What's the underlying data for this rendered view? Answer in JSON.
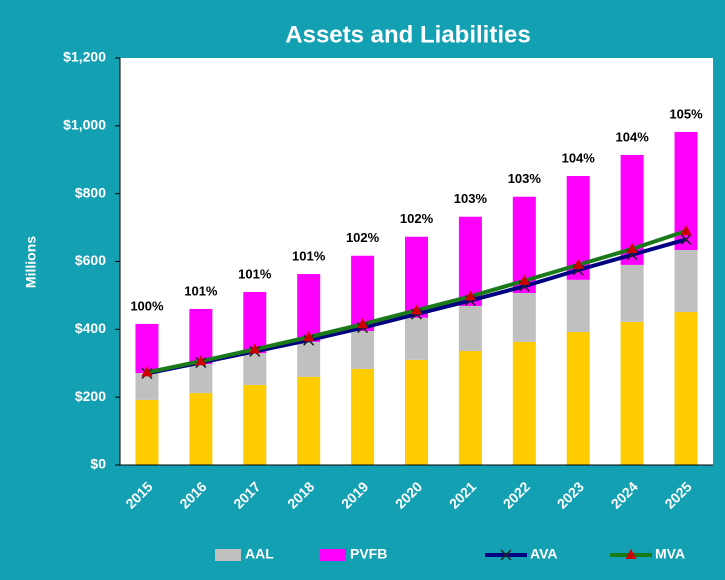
{
  "chart_data": {
    "type": "bar",
    "stacked": true,
    "title": "Assets and Liabilities",
    "y_label": "Millions",
    "categories": [
      "2015",
      "2016",
      "2017",
      "2018",
      "2019",
      "2020",
      "2021",
      "2022",
      "2023",
      "2024",
      "2025"
    ],
    "series": [
      {
        "color": "#ffcc00",
        "values": [
          192,
          212,
          236,
          260,
          283,
          310,
          336,
          363,
          392,
          422,
          451
        ]
      },
      {
        "name": "AAL",
        "color": "#c0c0c0",
        "values": [
          79,
          86,
          94,
          103,
          112,
          124,
          133,
          144,
          154,
          168,
          183
        ]
      },
      {
        "name": "PVFB",
        "color": "#ff00ff",
        "values": [
          145,
          162,
          180,
          200,
          222,
          239,
          263,
          284,
          306,
          324,
          348
        ]
      }
    ],
    "lines": [
      {
        "name": "AVA",
        "color": "#000080",
        "marker": "x",
        "values": [
          270,
          302,
          335,
          368,
          405,
          445,
          485,
          527,
          575,
          620,
          665
        ]
      },
      {
        "name": "MVA",
        "color": "#1a7a1a",
        "marker": "triangle",
        "marker_color": "#cc0000",
        "values": [
          273,
          306,
          341,
          377,
          415,
          456,
          497,
          543,
          590,
          637,
          690
        ]
      }
    ],
    "bar_labels": [
      "100%",
      "101%",
      "101%",
      "101%",
      "102%",
      "102%",
      "103%",
      "103%",
      "104%",
      "104%",
      "105%"
    ],
    "ylim": [
      0,
      1200
    ],
    "yticks": [
      {
        "value": 0,
        "label": "$0"
      },
      {
        "value": 200,
        "label": "$200"
      },
      {
        "value": 400,
        "label": "$400"
      },
      {
        "value": 600,
        "label": "$600"
      },
      {
        "value": 800,
        "label": "$800"
      },
      {
        "value": 1000,
        "label": "$1,000"
      },
      {
        "value": 1200,
        "label": "$1,200"
      }
    ],
    "grid": false,
    "legend": "bottom"
  }
}
